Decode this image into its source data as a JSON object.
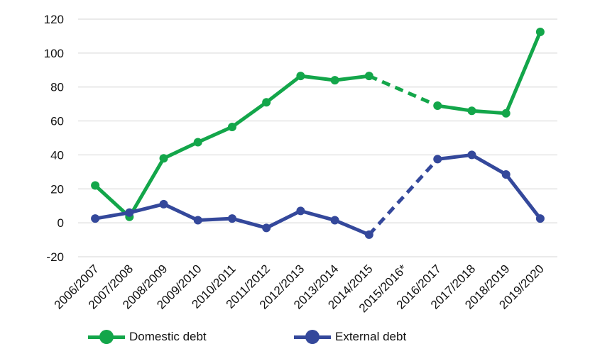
{
  "chart_data": {
    "type": "line",
    "categories": [
      "2006/2007",
      "2007/2008",
      "2008/2009",
      "2009/2010",
      "2010/2011",
      "2011/2012",
      "2012/2013",
      "2013/2014",
      "2014/2015",
      "2015/2016*",
      "2016/2017",
      "2017/2018",
      "2018/2019",
      "2019/2020"
    ],
    "series": [
      {
        "name": "Domestic debt",
        "color": "#13a64a",
        "values": [
          22,
          3.5,
          38,
          47.5,
          56.5,
          71,
          86.5,
          84,
          86.5,
          null,
          69,
          66,
          64.5,
          112.5
        ]
      },
      {
        "name": "External debt",
        "color": "#34489b",
        "values": [
          2.5,
          6,
          11,
          1.5,
          2.5,
          -3,
          7,
          1.5,
          -7,
          null,
          37.5,
          40,
          28.5,
          2.5
        ]
      }
    ],
    "gap_bridge": "dashed",
    "ylim": [
      -20,
      120
    ],
    "yticks": [
      -20,
      0,
      20,
      40,
      60,
      80,
      100,
      120
    ],
    "grid": "horizontal",
    "legend_position": "bottom"
  }
}
